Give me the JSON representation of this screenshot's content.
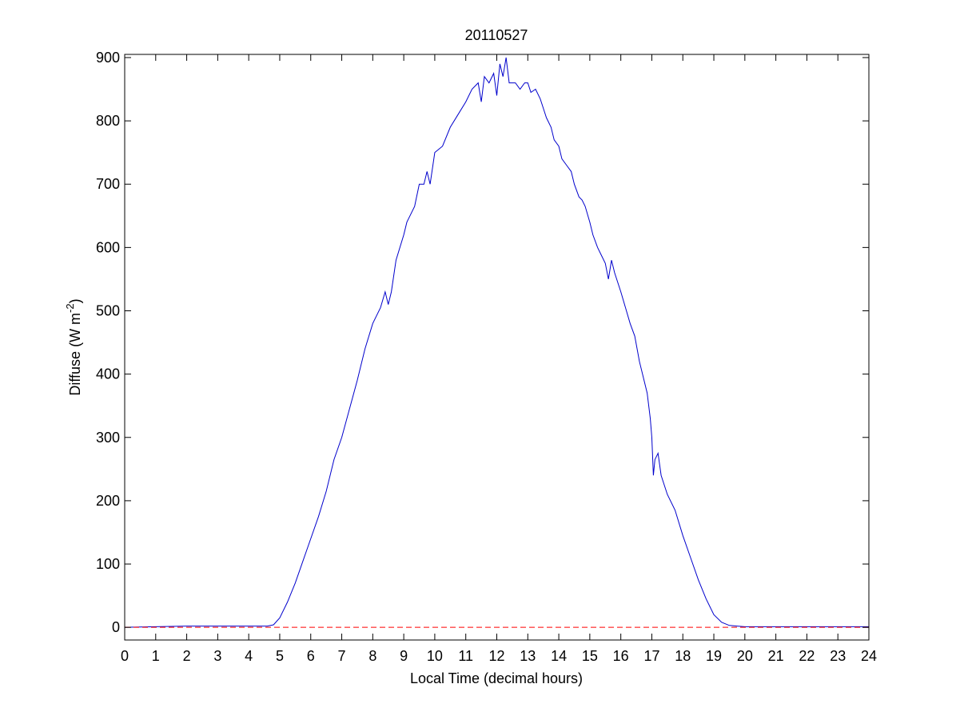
{
  "figure": {
    "title": "20110527",
    "xlabel": "Local Time (decimal hours)",
    "ylabel_main": "Diffuse (W m",
    "ylabel_sup": "-2",
    "ylabel_close": ")"
  },
  "chart_data": {
    "type": "line",
    "title": "20110527",
    "xlabel": "Local Time (decimal hours)",
    "ylabel": "Diffuse (W m-2)",
    "xlim": [
      0,
      24
    ],
    "ylim": [
      -20,
      905
    ],
    "xticks": [
      "0",
      "1",
      "2",
      "3",
      "4",
      "5",
      "6",
      "7",
      "8",
      "9",
      "10",
      "11",
      "12",
      "13",
      "14",
      "15",
      "16",
      "17",
      "18",
      "19",
      "20",
      "21",
      "22",
      "23",
      "24"
    ],
    "yticks": [
      "0",
      "100",
      "200",
      "300",
      "400",
      "500",
      "600",
      "700",
      "800",
      "900"
    ],
    "grid": false,
    "series": [
      {
        "color": "#0000cc",
        "style": "solid",
        "x": [
          0,
          1,
          2,
          3,
          4,
          4.6,
          4.8,
          5,
          5.25,
          5.5,
          5.75,
          6,
          6.25,
          6.5,
          6.75,
          7,
          7.25,
          7.5,
          7.75,
          8,
          8.25,
          8.4,
          8.5,
          8.6,
          8.75,
          9,
          9.1,
          9.2,
          9.35,
          9.5,
          9.65,
          9.75,
          9.85,
          10,
          10.25,
          10.5,
          10.75,
          11,
          11.2,
          11.4,
          11.5,
          11.6,
          11.75,
          11.9,
          12,
          12.1,
          12.2,
          12.3,
          12.4,
          12.5,
          12.6,
          12.75,
          12.9,
          13,
          13.1,
          13.25,
          13.4,
          13.5,
          13.6,
          13.75,
          13.85,
          14,
          14.1,
          14.25,
          14.4,
          14.5,
          14.65,
          14.75,
          14.85,
          15,
          15.1,
          15.25,
          15.35,
          15.5,
          15.6,
          15.7,
          15.8,
          16,
          16.15,
          16.3,
          16.45,
          16.6,
          16.75,
          16.85,
          16.95,
          17,
          17.05,
          17.1,
          17.2,
          17.3,
          17.5,
          17.75,
          18,
          18.25,
          18.5,
          18.75,
          19,
          19.25,
          19.5,
          19.75,
          20,
          21,
          22,
          23,
          24
        ],
        "y": [
          0,
          1,
          2,
          2,
          2,
          2,
          4,
          15,
          40,
          70,
          105,
          140,
          175,
          215,
          265,
          300,
          345,
          390,
          440,
          480,
          505,
          530,
          510,
          530,
          580,
          620,
          640,
          650,
          665,
          700,
          700,
          720,
          700,
          750,
          760,
          790,
          810,
          830,
          850,
          860,
          830,
          870,
          860,
          875,
          840,
          890,
          870,
          900,
          860,
          860,
          860,
          850,
          860,
          860,
          845,
          850,
          835,
          820,
          805,
          790,
          770,
          760,
          740,
          730,
          720,
          700,
          680,
          675,
          665,
          640,
          620,
          600,
          590,
          575,
          550,
          580,
          560,
          530,
          505,
          480,
          460,
          420,
          390,
          370,
          330,
          300,
          240,
          265,
          275,
          240,
          210,
          185,
          145,
          110,
          75,
          45,
          20,
          8,
          3,
          2,
          1,
          1,
          1,
          1,
          1
        ]
      },
      {
        "color": "#ff0000",
        "style": "dashed",
        "x": [
          0,
          24
        ],
        "y": [
          0,
          0
        ]
      }
    ]
  }
}
